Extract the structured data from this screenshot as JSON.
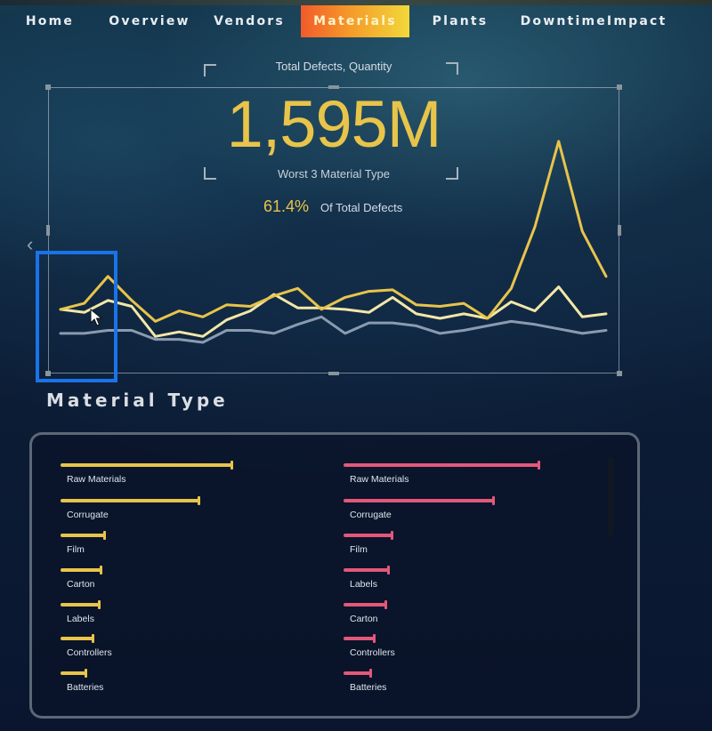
{
  "nav": {
    "items": [
      {
        "label": "Home"
      },
      {
        "label": "Overview"
      },
      {
        "label": "Vendors"
      },
      {
        "label": "Materials",
        "active": true
      },
      {
        "label": "Plants"
      },
      {
        "label": "DowntimeImpact"
      }
    ]
  },
  "kpi": {
    "title": "Total Defects, Quantity",
    "value": "1,595M",
    "subtitle": "Worst 3 Material Type",
    "percent": "61.4%",
    "percent_label": "Of Total Defects"
  },
  "section": {
    "title": "Material Type"
  },
  "colors": {
    "accent_yellow": "#e8c44a",
    "cream": "#f2e7a8",
    "gray": "#8a9bb0",
    "pink": "#e3587a",
    "selection_blue": "#1a73e8"
  },
  "chart_data": {
    "type": "line",
    "x": [
      1,
      2,
      3,
      4,
      5,
      6,
      7,
      8,
      9,
      10,
      11,
      12,
      13,
      14,
      15,
      16,
      17,
      18,
      19,
      20,
      21,
      22,
      23,
      24
    ],
    "series": [
      {
        "color": "#e8c44a",
        "values": [
          38,
          42,
          60,
          44,
          30,
          37,
          33,
          41,
          40,
          47,
          52,
          38,
          46,
          50,
          51,
          41,
          40,
          42,
          32,
          52,
          93,
          150,
          90,
          60
        ]
      },
      {
        "color": "#f2e7a8",
        "values": [
          38,
          36,
          44,
          40,
          20,
          23,
          20,
          31,
          37,
          48,
          39,
          39,
          38,
          36,
          46,
          35,
          32,
          35,
          32,
          43,
          37,
          53,
          33,
          35
        ]
      },
      {
        "color": "#8a9bb0",
        "values": [
          22,
          22,
          24,
          24,
          18,
          18,
          16,
          24,
          24,
          22,
          28,
          33,
          22,
          29,
          29,
          27,
          22,
          24,
          27,
          30,
          28,
          25,
          22,
          24
        ]
      }
    ],
    "ylim": [
      0,
      160
    ]
  },
  "bars": {
    "left": {
      "color": "#e8c44a",
      "items": [
        {
          "label": "Raw Materials",
          "value": 100
        },
        {
          "label": "Corrugate",
          "value": 81
        },
        {
          "label": "Film",
          "value": 26
        },
        {
          "label": "Carton",
          "value": 24
        },
        {
          "label": "Labels",
          "value": 23
        },
        {
          "label": "Controllers",
          "value": 19
        },
        {
          "label": "Batteries",
          "value": 15
        }
      ]
    },
    "right": {
      "color": "#e3587a",
      "items": [
        {
          "label": "Raw Materials",
          "value": 100
        },
        {
          "label": "Corrugate",
          "value": 77
        },
        {
          "label": "Film",
          "value": 25
        },
        {
          "label": "Labels",
          "value": 23
        },
        {
          "label": "Carton",
          "value": 22
        },
        {
          "label": "Controllers",
          "value": 16
        },
        {
          "label": "Batteries",
          "value": 14
        }
      ]
    }
  }
}
